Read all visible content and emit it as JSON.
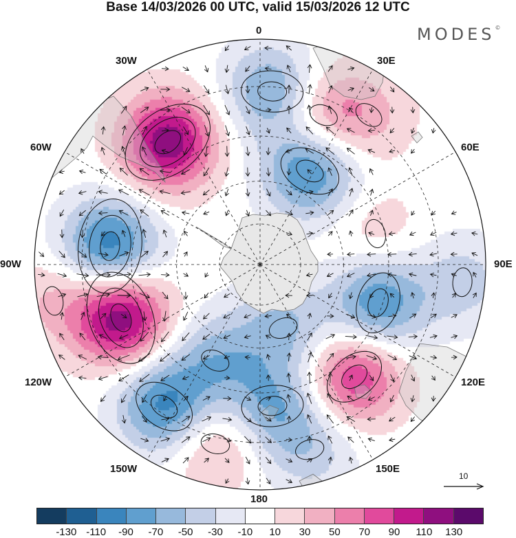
{
  "title": "Base 14/03/2026 00 UTC, valid 15/03/2026 12 UTC",
  "logo": "MODES",
  "logo_mark": "©",
  "longitude_labels": {
    "lon_0": "0",
    "lon_30e": "30E",
    "lon_60e": "60E",
    "lon_90e": "90E",
    "lon_120e": "120E",
    "lon_150e": "150E",
    "lon_180": "180",
    "lon_150w": "150W",
    "lon_120w": "120W",
    "lon_90w": "90W",
    "lon_60w": "60W",
    "lon_30w": "30W"
  },
  "vector_reference": "10",
  "colorbar": {
    "colors": [
      "#143c5f",
      "#1f5f92",
      "#3a85bd",
      "#609fcf",
      "#97b9dc",
      "#c3cfe7",
      "#e6e8f4",
      "#ffffff",
      "#f7d7dc",
      "#f1b0c2",
      "#ec7fab",
      "#e14a9c",
      "#c21a8c",
      "#8f0f7f",
      "#5b0a6b"
    ],
    "tick_labels": [
      "-130",
      "-110",
      "-90",
      "-70",
      "-50",
      "-30",
      "-10",
      "10",
      "30",
      "50",
      "70",
      "90",
      "110",
      "130"
    ]
  },
  "anomaly_centers": [
    {
      "lon": 28,
      "colat": 0.47,
      "value": -95
    },
    {
      "lon": 4,
      "colat": 0.77,
      "value": -75
    },
    {
      "lon": -37,
      "colat": 0.68,
      "value": 125
    },
    {
      "lon": 23,
      "colat": 0.72,
      "value": 55
    },
    {
      "lon": 36,
      "colat": 0.82,
      "value": 30
    },
    {
      "lon": 75,
      "colat": 0.53,
      "value": 25
    },
    {
      "lon": 108,
      "colat": 0.55,
      "value": -90
    },
    {
      "lon": 95,
      "colat": 0.9,
      "value": -40
    },
    {
      "lon": 140,
      "colat": 0.65,
      "value": 90
    },
    {
      "lon": 160,
      "colat": 0.3,
      "value": -55
    },
    {
      "lon": 175,
      "colat": 0.63,
      "value": -65
    },
    {
      "lon": -155,
      "colat": 0.47,
      "value": -55
    },
    {
      "lon": -166,
      "colat": 0.82,
      "value": 45
    },
    {
      "lon": -146,
      "colat": 0.76,
      "value": -95
    },
    {
      "lon": -111,
      "colat": 0.66,
      "value": 125
    },
    {
      "lon": -83,
      "colat": 0.67,
      "value": -105
    },
    {
      "lon": -100,
      "colat": 0.93,
      "value": 30
    },
    {
      "lon": 165,
      "colat": 0.85,
      "value": -40
    }
  ]
}
